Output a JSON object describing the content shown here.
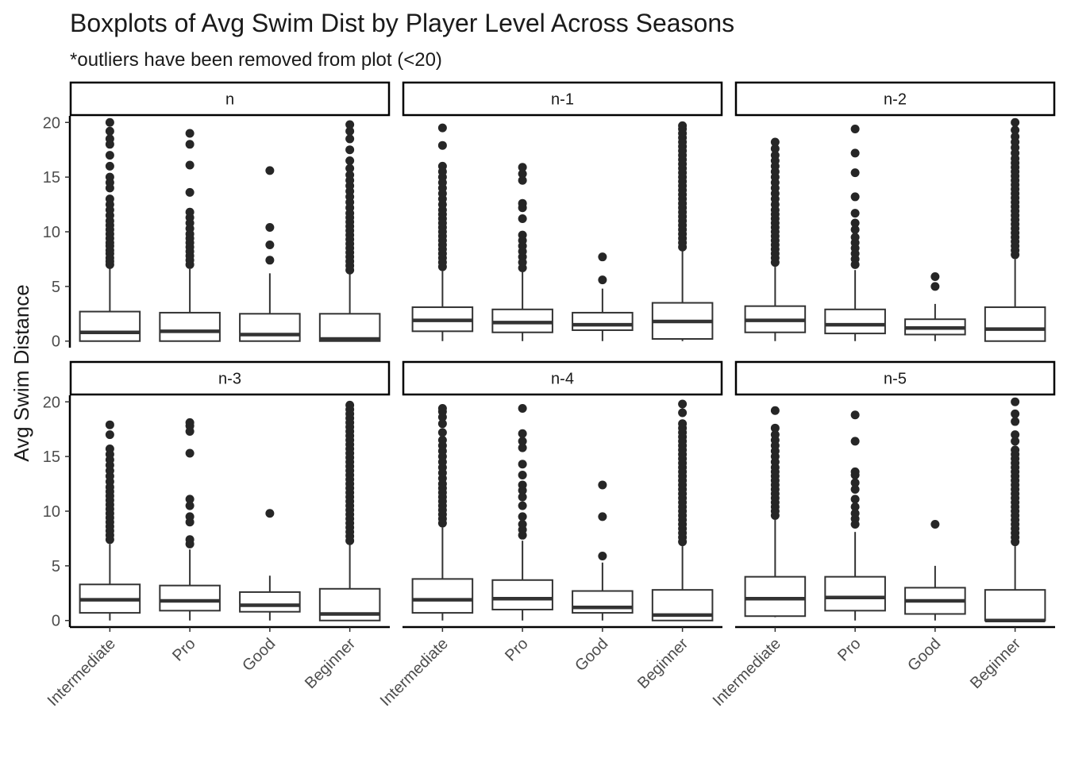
{
  "chart_data": {
    "type": "boxplot",
    "title": "Boxplots of Avg Swim Dist by Player Level Across Seasons",
    "subtitle": "*outliers have been removed from plot (<20)",
    "ylabel": "Avg Swim Distance",
    "xlabel": "",
    "ylim": [
      -0.6,
      20.6
    ],
    "yticks": [
      0,
      5,
      10,
      15,
      20
    ],
    "categories": [
      "Intermediate",
      "Pro",
      "Good",
      "Beginner"
    ],
    "colors": {
      "box_stroke": "#333333",
      "outlier": "#262626",
      "strip_border": "#000000",
      "text": "#1a1a1a"
    },
    "panels": [
      {
        "label": "n",
        "boxes": [
          {
            "category": "Intermediate",
            "min": 0,
            "q1": 0,
            "median": 0.8,
            "q3": 2.7,
            "max": 6.8,
            "outliers": [
              7,
              7.3,
              7.6,
              8,
              8.3,
              8.7,
              9,
              9.4,
              9.8,
              10.2,
              10.6,
              11,
              11.5,
              12,
              12.5,
              13,
              14,
              14.5,
              15,
              16,
              17,
              18,
              18.5,
              19.2,
              20
            ]
          },
          {
            "category": "Pro",
            "min": 0,
            "q1": 0,
            "median": 0.9,
            "q3": 2.6,
            "max": 6.6,
            "outliers": [
              7,
              7.4,
              7.8,
              8.2,
              8.6,
              9,
              9.4,
              9.8,
              10.3,
              10.8,
              11.3,
              11.8,
              13.6,
              16.1,
              18,
              19
            ]
          },
          {
            "category": "Good",
            "min": 0,
            "q1": 0,
            "median": 0.6,
            "q3": 2.5,
            "max": 6.2,
            "outliers": [
              7.4,
              8.8,
              10.4,
              15.6
            ]
          },
          {
            "category": "Beginner",
            "min": 0,
            "q1": 0,
            "median": 0.2,
            "q3": 2.5,
            "max": 6.2,
            "outliers": [
              6.5,
              6.9,
              7.3,
              7.7,
              8.1,
              8.5,
              8.9,
              9.3,
              9.7,
              10.1,
              10.5,
              10.9,
              11.3,
              11.7,
              12.2,
              12.7,
              13.2,
              13.7,
              14.2,
              14.7,
              15.2,
              15.8,
              16.5,
              17.5,
              18.5,
              19.2,
              19.8
            ]
          }
        ]
      },
      {
        "label": "n-1",
        "boxes": [
          {
            "category": "Intermediate",
            "min": 0,
            "q1": 0.9,
            "median": 1.9,
            "q3": 3.1,
            "max": 6.4,
            "outliers": [
              6.8,
              7.2,
              7.6,
              8,
              8.4,
              8.8,
              9.2,
              9.6,
              10,
              10.4,
              10.8,
              11.2,
              11.6,
              12,
              12.5,
              13,
              13.5,
              14,
              14.5,
              15,
              15.5,
              16,
              17.9,
              19.5
            ]
          },
          {
            "category": "Pro",
            "min": 0,
            "q1": 0.8,
            "median": 1.7,
            "q3": 2.9,
            "max": 6.3,
            "outliers": [
              6.7,
              7.2,
              7.7,
              8.2,
              8.7,
              9.2,
              9.7,
              11.2,
              12.2,
              12.6,
              14.7,
              15.3,
              15.9
            ]
          },
          {
            "category": "Good",
            "min": 0,
            "q1": 1.0,
            "median": 1.5,
            "q3": 2.6,
            "max": 4.8,
            "outliers": [
              5.6,
              7.7
            ]
          },
          {
            "category": "Beginner",
            "min": 0,
            "q1": 0.2,
            "median": 1.8,
            "q3": 3.5,
            "max": 8.3,
            "outliers": [
              8.6,
              9,
              9.4,
              9.8,
              10.2,
              10.6,
              11,
              11.4,
              11.8,
              12.2,
              12.6,
              13,
              13.4,
              13.8,
              14.2,
              14.6,
              15,
              15.4,
              15.8,
              16.2,
              16.6,
              17,
              17.4,
              17.8,
              18.2,
              18.6,
              19,
              19.4,
              19.7
            ]
          }
        ]
      },
      {
        "label": "n-2",
        "boxes": [
          {
            "category": "Intermediate",
            "min": 0,
            "q1": 0.8,
            "median": 1.9,
            "q3": 3.2,
            "max": 6.8,
            "outliers": [
              7.2,
              7.6,
              8,
              8.4,
              8.8,
              9.2,
              9.6,
              10,
              10.4,
              10.8,
              11.2,
              11.6,
              12,
              12.5,
              13,
              13.5,
              14,
              14.5,
              15,
              15.5,
              16,
              16.5,
              17,
              17.6,
              18.2
            ]
          },
          {
            "category": "Pro",
            "min": 0,
            "q1": 0.7,
            "median": 1.5,
            "q3": 2.9,
            "max": 6.5,
            "outliers": [
              7,
              7.5,
              8,
              8.5,
              9,
              9.5,
              10.2,
              10.8,
              11.7,
              13.2,
              15.4,
              17.2,
              19.4
            ]
          },
          {
            "category": "Good",
            "min": 0,
            "q1": 0.6,
            "median": 1.2,
            "q3": 2.0,
            "max": 3.4,
            "outliers": [
              5.0,
              5.9
            ]
          },
          {
            "category": "Beginner",
            "min": 0,
            "q1": 0,
            "median": 1.1,
            "q3": 3.1,
            "max": 7.5,
            "outliers": [
              7.9,
              8.3,
              8.7,
              9.1,
              9.5,
              9.9,
              10.3,
              10.7,
              11.1,
              11.5,
              11.9,
              12.3,
              12.7,
              13.1,
              13.5,
              13.9,
              14.3,
              14.7,
              15.1,
              15.5,
              15.9,
              16.3,
              16.7,
              17.2,
              17.7,
              18.2,
              18.7,
              19.3,
              20
            ]
          }
        ]
      },
      {
        "label": "n-3",
        "boxes": [
          {
            "category": "Intermediate",
            "min": 0,
            "q1": 0.7,
            "median": 1.9,
            "q3": 3.3,
            "max": 7.0,
            "outliers": [
              7.4,
              7.8,
              8.2,
              8.6,
              9,
              9.4,
              9.8,
              10.2,
              10.6,
              11,
              11.4,
              11.8,
              12.2,
              12.7,
              13.2,
              13.7,
              14.2,
              14.7,
              15.2,
              15.7,
              17,
              17.9
            ]
          },
          {
            "category": "Pro",
            "min": 0,
            "q1": 0.9,
            "median": 1.8,
            "q3": 3.2,
            "max": 6.5,
            "outliers": [
              7.0,
              7.4,
              9.0,
              9.5,
              10.5,
              11.1,
              15.3,
              17.3,
              17.8,
              18.1
            ]
          },
          {
            "category": "Good",
            "min": 0,
            "q1": 0.8,
            "median": 1.4,
            "q3": 2.6,
            "max": 4.1,
            "outliers": [
              9.8
            ]
          },
          {
            "category": "Beginner",
            "min": 0,
            "q1": 0,
            "median": 0.6,
            "q3": 2.9,
            "max": 7.0,
            "outliers": [
              7.3,
              7.7,
              8.1,
              8.5,
              8.9,
              9.3,
              9.7,
              10.1,
              10.5,
              10.9,
              11.3,
              11.7,
              12.1,
              12.5,
              12.9,
              13.3,
              13.7,
              14.1,
              14.5,
              14.9,
              15.3,
              15.7,
              16.1,
              16.5,
              16.9,
              17.3,
              17.7,
              18.1,
              18.5,
              18.9,
              19.3,
              19.7
            ]
          }
        ]
      },
      {
        "label": "n-4",
        "boxes": [
          {
            "category": "Intermediate",
            "min": 0,
            "q1": 0.7,
            "median": 1.9,
            "q3": 3.8,
            "max": 8.5,
            "outliers": [
              8.9,
              9.3,
              9.7,
              10.1,
              10.5,
              10.9,
              11.3,
              11.7,
              12.1,
              12.5,
              13,
              13.5,
              14,
              14.5,
              15,
              15.5,
              16,
              16.5,
              17.2,
              18,
              18.6,
              19.1,
              19.4
            ]
          },
          {
            "category": "Pro",
            "min": 0,
            "q1": 1.0,
            "median": 2.0,
            "q3": 3.7,
            "max": 7.3,
            "outliers": [
              7.8,
              8.3,
              8.8,
              9.5,
              10.5,
              11.3,
              11.9,
              12.4,
              13.3,
              14.3,
              15.8,
              16.4,
              17.1,
              19.4
            ]
          },
          {
            "category": "Good",
            "min": 0,
            "q1": 0.7,
            "median": 1.2,
            "q3": 2.7,
            "max": 5.3,
            "outliers": [
              5.9,
              9.5,
              12.4
            ]
          },
          {
            "category": "Beginner",
            "min": 0,
            "q1": 0,
            "median": 0.5,
            "q3": 2.8,
            "max": 6.8,
            "outliers": [
              7.2,
              7.6,
              8,
              8.4,
              8.8,
              9.2,
              9.6,
              10,
              10.4,
              10.8,
              11.2,
              11.6,
              12,
              12.4,
              12.8,
              13.2,
              13.6,
              14,
              14.4,
              14.8,
              15.2,
              15.6,
              16,
              16.4,
              16.8,
              17.2,
              17.6,
              18,
              19,
              19.8
            ]
          }
        ]
      },
      {
        "label": "n-5",
        "boxes": [
          {
            "category": "Intermediate",
            "min": 0.3,
            "q1": 0.4,
            "median": 2.0,
            "q3": 4.0,
            "max": 9.2,
            "outliers": [
              9.6,
              10,
              10.4,
              10.8,
              11.2,
              11.6,
              12,
              12.4,
              12.8,
              13.2,
              13.6,
              14,
              14.5,
              15,
              15.5,
              16,
              16.5,
              17,
              17.6,
              19.2
            ]
          },
          {
            "category": "Pro",
            "min": 0,
            "q1": 0.9,
            "median": 2.1,
            "q3": 4.0,
            "max": 8.1,
            "outliers": [
              8.8,
              9.3,
              9.8,
              10.4,
              11.1,
              12,
              12.6,
              13.3,
              13.6,
              16.4,
              18.8
            ]
          },
          {
            "category": "Good",
            "min": 0,
            "q1": 0.6,
            "median": 1.8,
            "q3": 3.0,
            "max": 5.0,
            "outliers": [
              8.8
            ]
          },
          {
            "category": "Beginner",
            "min": 0,
            "q1": 0,
            "median": 0,
            "q3": 2.8,
            "max": 6.8,
            "outliers": [
              7.2,
              7.6,
              8,
              8.4,
              8.8,
              9.2,
              9.6,
              10,
              10.4,
              10.8,
              11.2,
              11.6,
              12,
              12.4,
              12.8,
              13.2,
              13.6,
              14,
              14.4,
              14.8,
              15.2,
              15.6,
              16.4,
              17,
              18.2,
              18.9,
              20
            ]
          }
        ]
      }
    ]
  }
}
